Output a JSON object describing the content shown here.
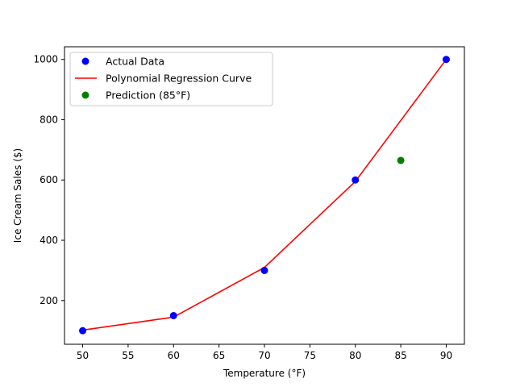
{
  "chart_data": {
    "type": "scatter",
    "title": "",
    "xlabel": "Temperature (°F)",
    "ylabel": "Ice Cream Sales ($)",
    "xlim": [
      48,
      92
    ],
    "ylim": [
      55,
      1042
    ],
    "xticks": [
      50,
      55,
      60,
      65,
      70,
      75,
      80,
      85,
      90
    ],
    "yticks": [
      200,
      400,
      600,
      800,
      1000
    ],
    "grid": false,
    "legend_position": "top-left",
    "series": [
      {
        "name": "Actual Data",
        "kind": "scatter",
        "color": "#0000ff",
        "points": [
          [
            50,
            100
          ],
          [
            60,
            150
          ],
          [
            70,
            300
          ],
          [
            80,
            600
          ],
          [
            90,
            1000
          ]
        ]
      },
      {
        "name": "Polynomial Regression Curve",
        "kind": "line",
        "color": "#ff0000",
        "points": [
          [
            50,
            102
          ],
          [
            60,
            145
          ],
          [
            70,
            310
          ],
          [
            80,
            595
          ],
          [
            90,
            1000
          ]
        ]
      },
      {
        "name": "Prediction (85°F)",
        "kind": "scatter",
        "color": "#008000",
        "points": [
          [
            85,
            665
          ]
        ]
      }
    ]
  }
}
